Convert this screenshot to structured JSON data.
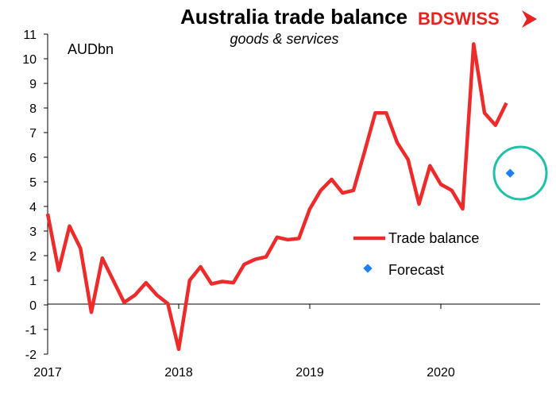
{
  "chart_data": {
    "type": "line",
    "title": "Australia trade balance",
    "subtitle": "goods & services",
    "ylabel": "AUDbn",
    "ylim": [
      -2,
      11
    ],
    "yticks": [
      "11",
      "10",
      "9",
      "8",
      "7",
      "6",
      "5",
      "4",
      "3",
      "2",
      "1",
      "0",
      "-1",
      "-2"
    ],
    "xticks": [
      "2017",
      "2018",
      "2019",
      "2020"
    ],
    "series": [
      {
        "name": "Trade balance",
        "color": "#ee2b2b",
        "x": [
          "2017-01",
          "2017-02",
          "2017-03",
          "2017-04",
          "2017-05",
          "2017-06",
          "2017-07",
          "2017-08",
          "2017-09",
          "2017-10",
          "2017-11",
          "2017-12",
          "2018-01",
          "2018-02",
          "2018-03",
          "2018-04",
          "2018-05",
          "2018-06",
          "2018-07",
          "2018-08",
          "2018-09",
          "2018-10",
          "2018-11",
          "2018-12",
          "2019-01",
          "2019-02",
          "2019-03",
          "2019-04",
          "2019-05",
          "2019-06",
          "2019-07",
          "2019-08",
          "2019-09",
          "2019-10",
          "2019-11",
          "2019-12",
          "2020-01",
          "2020-02",
          "2020-03",
          "2020-04",
          "2020-05",
          "2020-06",
          "2020-07"
        ],
        "values": [
          3.7,
          1.4,
          3.2,
          2.3,
          -0.3,
          1.9,
          1.0,
          0.1,
          0.4,
          0.9,
          0.4,
          0.05,
          -1.8,
          1.0,
          1.55,
          0.85,
          0.95,
          0.9,
          1.65,
          1.85,
          1.95,
          2.75,
          2.65,
          2.7,
          3.9,
          4.65,
          5.1,
          4.55,
          4.65,
          6.2,
          7.8,
          7.8,
          6.6,
          5.9,
          4.1,
          5.65,
          4.9,
          4.65,
          3.9,
          10.6,
          7.8,
          7.3,
          8.2
        ]
      },
      {
        "name": "Forecast",
        "color": "#1f7ff5",
        "x": [
          "2020-08"
        ],
        "values": [
          5.35
        ]
      }
    ],
    "legend": [
      "Trade balance",
      "Forecast"
    ],
    "legend_position": "right"
  },
  "logo": {
    "text": "BDSWISS"
  },
  "highlight_color": "#20c0a6"
}
